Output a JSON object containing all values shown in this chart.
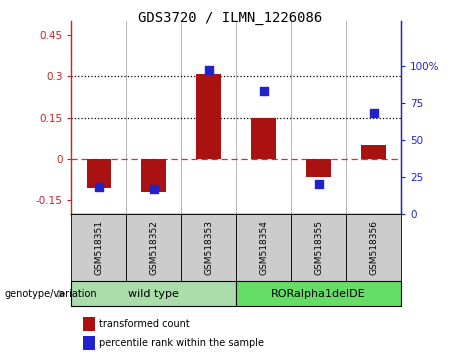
{
  "title": "GDS3720 / ILMN_1226086",
  "samples": [
    "GSM518351",
    "GSM518352",
    "GSM518353",
    "GSM518354",
    "GSM518355",
    "GSM518356"
  ],
  "groups": [
    {
      "name": "wild type",
      "indices": [
        0,
        1,
        2
      ]
    },
    {
      "name": "RORalpha1delDE",
      "indices": [
        3,
        4,
        5
      ]
    }
  ],
  "transformed_count": [
    -0.105,
    -0.118,
    0.308,
    0.148,
    -0.065,
    0.052
  ],
  "percentile_rank_pct": [
    18,
    17,
    97,
    83,
    20,
    68
  ],
  "ylim_left": [
    -0.2,
    0.5
  ],
  "ylim_right": [
    0,
    130
  ],
  "yticks_left": [
    -0.15,
    0.0,
    0.15,
    0.3,
    0.45
  ],
  "yticks_right": [
    0,
    25,
    50,
    75,
    100
  ],
  "hlines": [
    0.15,
    0.3
  ],
  "bar_color": "#aa1111",
  "dot_color": "#2222cc",
  "zero_line_color": "#cc3333",
  "bar_width": 0.45,
  "dot_size": 30,
  "left_axis_color": "#cc2222",
  "right_axis_color": "#2222cc",
  "group_label": "genotype/variation",
  "group_color_wt": "#aaddaa",
  "group_color_mut": "#66dd66",
  "sample_box_color": "#cccccc",
  "legend_items": [
    {
      "label": "transformed count",
      "color": "#aa1111"
    },
    {
      "label": "percentile rank within the sample",
      "color": "#2222cc"
    }
  ]
}
